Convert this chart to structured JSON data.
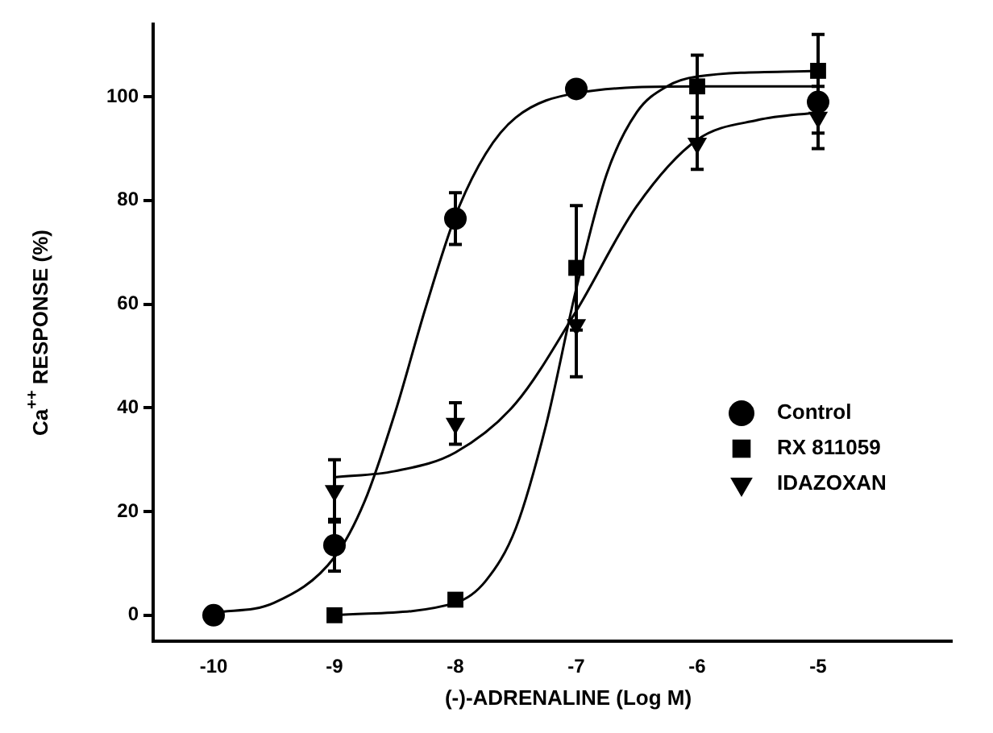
{
  "chart_data": {
    "type": "scatter",
    "xlabel": "(-)-ADRENALINE (Log M)",
    "ylabel": "Ca$^{++}$ RESPONSE (%)",
    "xlim": [
      -10.5,
      -3.9
    ],
    "xticks": [
      -10,
      -9,
      -8,
      -7,
      -6,
      -5
    ],
    "ylim": [
      -5,
      114
    ],
    "yticks": [
      0,
      20,
      40,
      60,
      80,
      100
    ],
    "grid": false,
    "legend": "right",
    "series": [
      {
        "name": "Control",
        "color": "#000000",
        "marker": "circle",
        "x": [
          -10,
          -9,
          -8,
          -7,
          -6,
          -5
        ],
        "values": [
          0,
          13.5,
          76.5,
          101.5,
          null,
          99
        ],
        "errors": [
          null,
          5,
          5,
          null,
          null,
          6
        ]
      },
      {
        "name": "RX 811059",
        "color": "#000000",
        "marker": "square",
        "x": [
          -9,
          -8,
          -7,
          -6,
          -5
        ],
        "values": [
          0,
          3,
          67,
          102,
          105
        ],
        "errors": [
          null,
          null,
          12,
          6,
          7
        ]
      },
      {
        "name": "IDAZOXAN",
        "color": "#000000",
        "marker": "triangle",
        "x": [
          -9,
          -8,
          -7,
          -6,
          -5
        ],
        "values": [
          24,
          37,
          56,
          91,
          96
        ],
        "errors": [
          6,
          4,
          10,
          5,
          6
        ]
      },
      {
        "type": "line",
        "color": "#000000",
        "marker": "none",
        "x": [
          -10,
          -9.5,
          -9,
          -8.75,
          -8.5,
          -8.25,
          -8,
          -7.75,
          -7.5,
          -7,
          -6,
          -5
        ],
        "values": [
          0.5,
          2.4,
          11.2,
          22,
          39,
          59,
          77,
          89,
          96,
          100.7,
          102,
          102
        ]
      },
      {
        "type": "line",
        "color": "#000000",
        "marker": "none",
        "x": [
          -9,
          -8,
          -7.75,
          -7.5,
          -7.25,
          -7,
          -6.75,
          -6.5,
          -6.25,
          -6,
          -5
        ],
        "values": [
          0,
          2.4,
          6.6,
          16.8,
          36.7,
          63,
          85,
          97,
          102,
          103.9,
          105
        ]
      },
      {
        "type": "line",
        "color": "#000000",
        "marker": "none",
        "x": [
          -9,
          -8.5,
          -8,
          -7.5,
          -7,
          -6.5,
          -6,
          -5.5,
          -5
        ],
        "values": [
          26.6,
          27.8,
          31.4,
          40.9,
          58.7,
          78.9,
          91.7,
          95.5,
          97
        ]
      }
    ]
  }
}
